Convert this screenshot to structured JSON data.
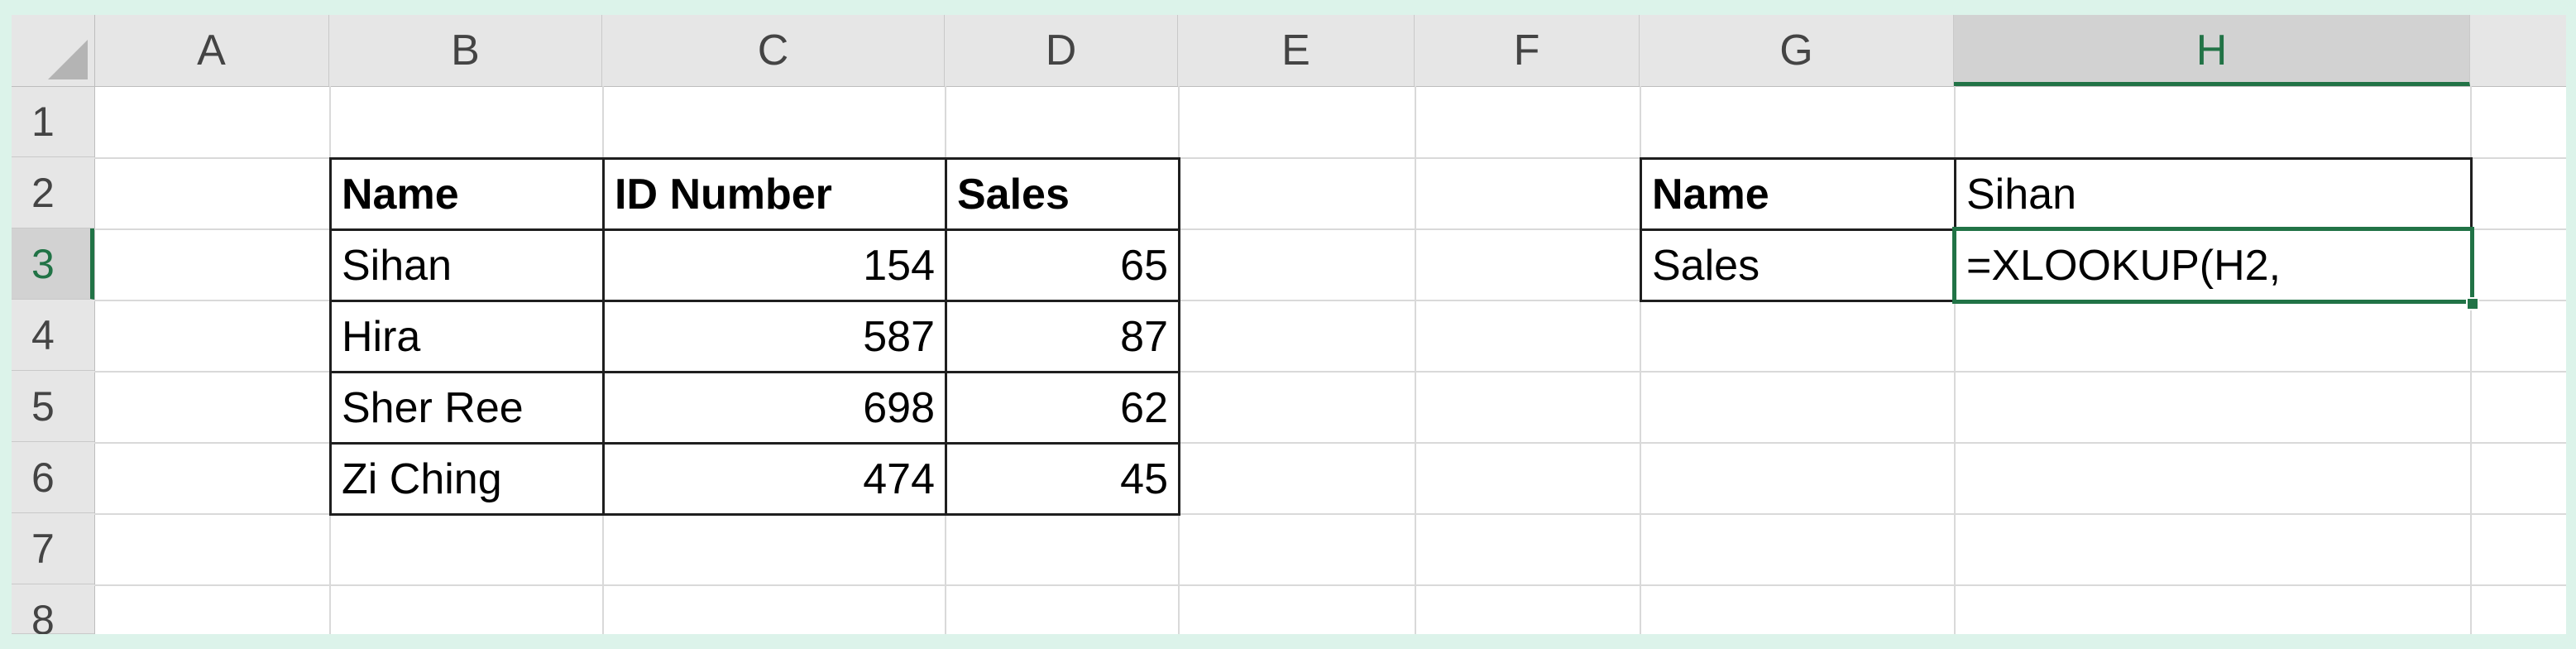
{
  "spreadsheet": {
    "columns": [
      "A",
      "B",
      "C",
      "D",
      "E",
      "F",
      "G",
      "H"
    ],
    "rows": [
      "1",
      "2",
      "3",
      "4",
      "5",
      "6",
      "7",
      "8"
    ],
    "active_column": "H",
    "active_row": "3",
    "accent_color": "#217346"
  },
  "data_table": {
    "headers": [
      "Name",
      "ID Number",
      "Sales"
    ],
    "rows": [
      [
        "Sihan",
        "154",
        "65"
      ],
      [
        "Hira",
        "587",
        "87"
      ],
      [
        "Sher Ree",
        "698",
        "62"
      ],
      [
        "Zi Ching",
        "474",
        "45"
      ]
    ]
  },
  "lookup": {
    "name_label": "Name",
    "name_value": "Sihan",
    "sales_label": "Sales",
    "formula": "=XLOOKUP(H2,"
  }
}
